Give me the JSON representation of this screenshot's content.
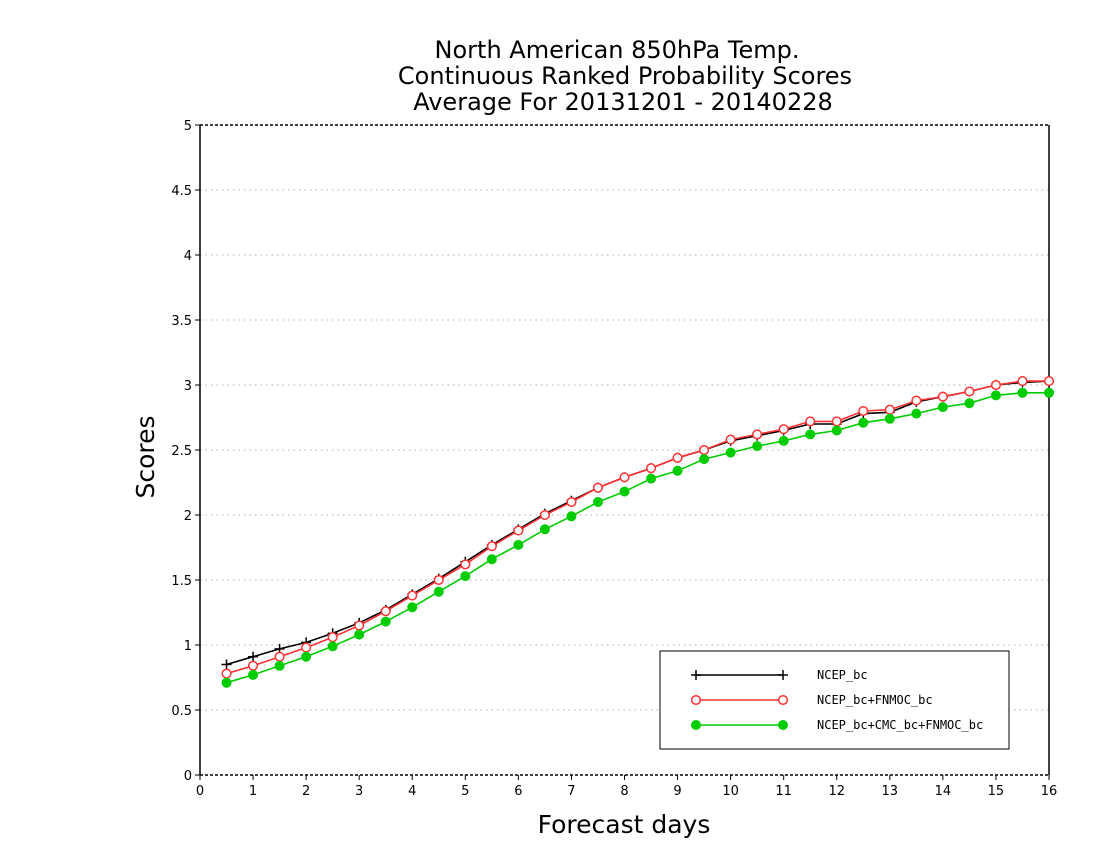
{
  "chart_data": {
    "type": "line",
    "title_lines": [
      "North American 850hPa Temp.",
      "Continuous Ranked Probability Scores",
      "Average For 20131201 - 20140228"
    ],
    "xlabel": "Forecast days",
    "ylabel": "Scores",
    "xlim": [
      0,
      16
    ],
    "ylim": [
      0,
      5
    ],
    "xticks": [
      "0",
      "1",
      "2",
      "3",
      "4",
      "5",
      "6",
      "7",
      "8",
      "9",
      "10",
      "11",
      "12",
      "13",
      "14",
      "15",
      "16"
    ],
    "yticks": [
      "0",
      "0.5",
      "1",
      "1.5",
      "2",
      "2.5",
      "3",
      "3.5",
      "4",
      "4.5",
      "5"
    ],
    "grid": true,
    "legend_position": "bottom-right",
    "x": [
      0.5,
      1,
      1.5,
      2,
      2.5,
      3,
      3.5,
      4,
      4.5,
      5,
      5.5,
      6,
      6.5,
      7,
      7.5,
      8,
      8.5,
      9,
      9.5,
      10,
      10.5,
      11,
      11.5,
      12,
      12.5,
      13,
      13.5,
      14,
      14.5,
      15,
      15.5,
      16
    ],
    "series": [
      {
        "name": "NCEP_bc",
        "color": "#000000",
        "marker": "plus",
        "values": [
          0.85,
          0.91,
          0.97,
          1.02,
          1.09,
          1.17,
          1.27,
          1.39,
          1.51,
          1.64,
          1.77,
          1.89,
          2.01,
          2.11,
          2.21,
          2.29,
          2.36,
          2.44,
          2.5,
          2.57,
          2.61,
          2.65,
          2.7,
          2.7,
          2.78,
          2.79,
          2.87,
          2.91,
          2.95,
          3.0,
          3.02,
          3.03
        ]
      },
      {
        "name": "NCEP_bc+FNMOC_bc",
        "color": "#ff3333",
        "marker": "open-circle",
        "values": [
          0.78,
          0.84,
          0.91,
          0.98,
          1.06,
          1.15,
          1.26,
          1.38,
          1.5,
          1.62,
          1.76,
          1.88,
          2.0,
          2.1,
          2.21,
          2.29,
          2.36,
          2.44,
          2.5,
          2.58,
          2.62,
          2.66,
          2.72,
          2.72,
          2.8,
          2.81,
          2.88,
          2.91,
          2.95,
          3.0,
          3.03,
          3.03
        ]
      },
      {
        "name": "NCEP_bc+CMC_bc+FNMOC_bc",
        "color": "#00cc00",
        "marker": "filled-circle",
        "values": [
          0.71,
          0.77,
          0.84,
          0.91,
          0.99,
          1.08,
          1.18,
          1.29,
          1.41,
          1.53,
          1.66,
          1.77,
          1.89,
          1.99,
          2.1,
          2.18,
          2.28,
          2.34,
          2.43,
          2.48,
          2.53,
          2.57,
          2.62,
          2.65,
          2.71,
          2.74,
          2.78,
          2.83,
          2.86,
          2.92,
          2.94,
          2.94
        ]
      }
    ]
  }
}
